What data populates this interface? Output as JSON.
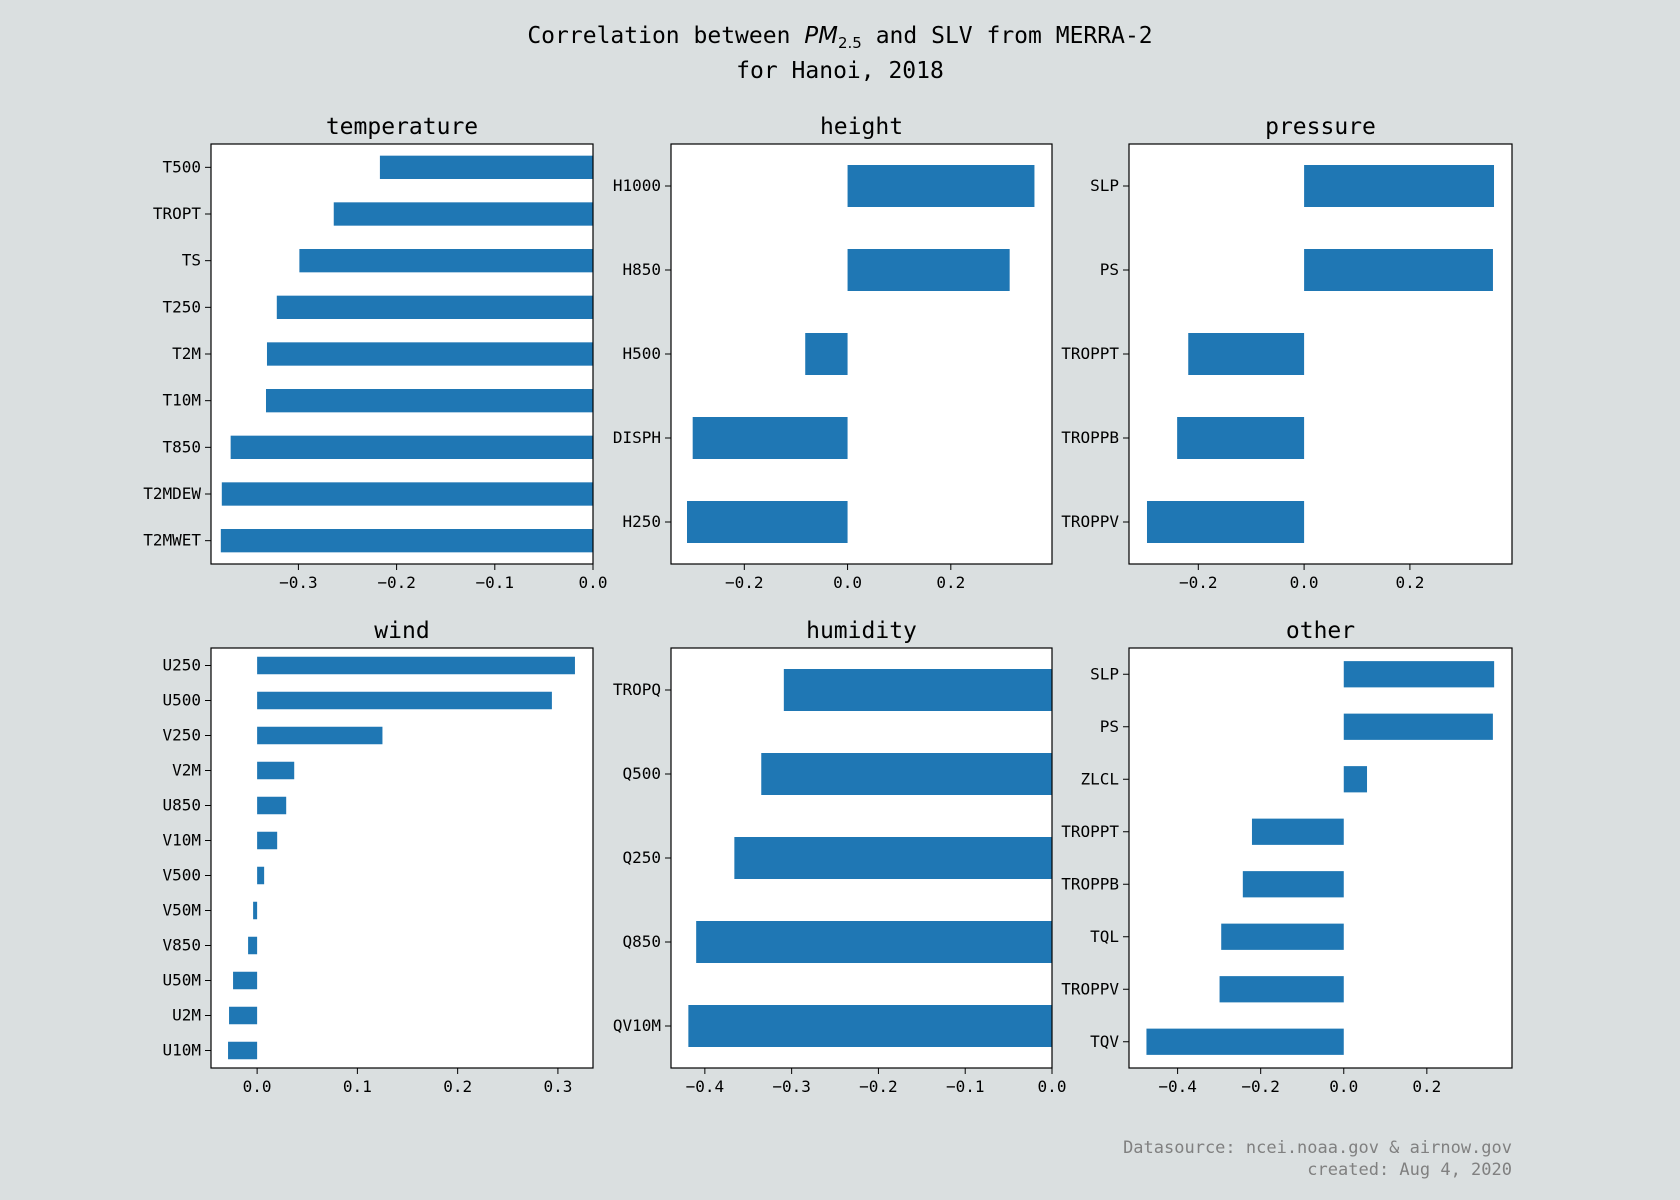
{
  "title": {
    "line1_pre": "Correlation between ",
    "pm_main": "PM",
    "pm_sub": "2.5",
    "line1_post": " and SLV from MERRA-2",
    "line2": "for Hanoi, 2018"
  },
  "credits": {
    "source": "Datasource: ncei.noaa.gov & airnow.gov",
    "created": "created: Aug 4, 2020"
  },
  "colors": {
    "bar": "#1f77b4",
    "panel_bg": "#ffffff",
    "figure_bg": "#dadfe0"
  },
  "chart_data": [
    {
      "type": "bar",
      "orientation": "horizontal",
      "title": "temperature",
      "xlim": [
        -0.389,
        0.0
      ],
      "xticks": [
        -0.3,
        -0.2,
        -0.1,
        0.0
      ],
      "xtick_labels": [
        "−0.3",
        "−0.2",
        "−0.1",
        "0.0"
      ],
      "categories": [
        "T500",
        "TROPT",
        "TS",
        "T250",
        "T2M",
        "T10M",
        "T850",
        "T2MDEW",
        "T2MWET"
      ],
      "values": [
        -0.217,
        -0.264,
        -0.299,
        -0.322,
        -0.332,
        -0.333,
        -0.369,
        -0.378,
        -0.379
      ]
    },
    {
      "type": "bar",
      "orientation": "horizontal",
      "title": "height",
      "xlim": [
        -0.342,
        0.396
      ],
      "xticks": [
        -0.2,
        0.0,
        0.2
      ],
      "xtick_labels": [
        "−0.2",
        "0.0",
        "0.2"
      ],
      "categories": [
        "H1000",
        "H850",
        "H500",
        "DISPH",
        "H250"
      ],
      "values": [
        0.362,
        0.314,
        -0.082,
        -0.3,
        -0.311
      ]
    },
    {
      "type": "bar",
      "orientation": "horizontal",
      "title": "pressure",
      "xlim": [
        -0.331,
        0.393
      ],
      "xticks": [
        -0.2,
        0.0,
        0.2
      ],
      "xtick_labels": [
        "−0.2",
        "0.0",
        "0.2"
      ],
      "categories": [
        "SLP",
        "PS",
        "TROPPT",
        "TROPPB",
        "TROPPV"
      ],
      "values": [
        0.359,
        0.357,
        -0.219,
        -0.24,
        -0.297
      ]
    },
    {
      "type": "bar",
      "orientation": "horizontal",
      "title": "wind",
      "xlim": [
        -0.046,
        0.335
      ],
      "xticks": [
        0.0,
        0.1,
        0.2,
        0.3
      ],
      "xtick_labels": [
        "0.0",
        "0.1",
        "0.2",
        "0.3"
      ],
      "categories": [
        "U250",
        "U500",
        "V250",
        "V2M",
        "U850",
        "V10M",
        "V500",
        "V50M",
        "V850",
        "U50M",
        "U2M",
        "U10M"
      ],
      "values": [
        0.317,
        0.294,
        0.125,
        0.037,
        0.029,
        0.02,
        0.007,
        -0.004,
        -0.009,
        -0.024,
        -0.028,
        -0.029
      ]
    },
    {
      "type": "bar",
      "orientation": "horizontal",
      "title": "humidity",
      "xlim": [
        -0.439,
        0.0
      ],
      "xticks": [
        -0.4,
        -0.3,
        -0.2,
        -0.1,
        0.0
      ],
      "xtick_labels": [
        "−0.4",
        "−0.3",
        "−0.2",
        "−0.1",
        "0.0"
      ],
      "categories": [
        "TROPQ",
        "Q500",
        "Q250",
        "Q850",
        "QV10M"
      ],
      "values": [
        -0.309,
        -0.335,
        -0.366,
        -0.41,
        -0.419
      ]
    },
    {
      "type": "bar",
      "orientation": "horizontal",
      "title": "other",
      "xlim": [
        -0.517,
        0.405
      ],
      "xticks": [
        -0.4,
        -0.2,
        0.0,
        0.2
      ],
      "xtick_labels": [
        "−0.4",
        "−0.2",
        "0.0",
        "0.2"
      ],
      "categories": [
        "SLP",
        "PS",
        "ZLCL",
        "TROPPT",
        "TROPPB",
        "TQL",
        "TROPPV",
        "TQV"
      ],
      "values": [
        0.362,
        0.359,
        0.056,
        -0.221,
        -0.243,
        -0.295,
        -0.299,
        -0.475
      ]
    }
  ]
}
